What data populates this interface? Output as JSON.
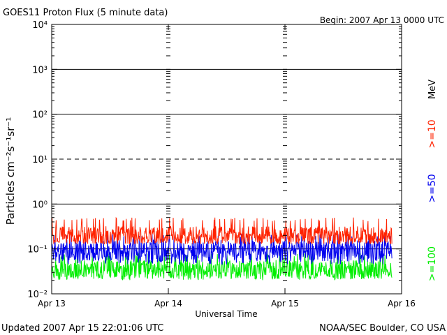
{
  "chart_data": {
    "type": "line",
    "title": "GOES11 Proton Flux (5 minute data)",
    "begin_label": "Begin: 2007 Apr 13 0000 UTC",
    "xlabel": "Universal Time",
    "ylabel": "Particles cm⁻²s⁻¹sr⁻¹",
    "y_scale": "log",
    "ylim": [
      0.01,
      10000
    ],
    "x_start": "2007-04-13 00:00 UTC",
    "x_end": "2007-04-16 00:00 UTC",
    "x_tick_labels": [
      "Apr 13",
      "Apr 14",
      "Apr 15",
      "Apr 16"
    ],
    "y_tick_labels": [
      "10⁻²",
      "10⁻¹",
      "10⁰",
      "10¹",
      "10²",
      "10³",
      "10⁴"
    ],
    "units_label": "MeV",
    "data_end": "2007-04-15 22:00 UTC",
    "threshold_lines": [
      {
        "value": 0.1,
        "style": "solid"
      },
      {
        "value": 1,
        "style": "solid"
      },
      {
        "value": 10,
        "style": "dashed"
      },
      {
        "value": 100,
        "style": "solid"
      },
      {
        "value": 1000,
        "style": "solid"
      }
    ],
    "series": [
      {
        "name": ">=10",
        "color": "#ff2200",
        "baseline": 0.2,
        "range": [
          0.13,
          0.5
        ]
      },
      {
        "name": ">=50",
        "color": "#0000ee",
        "baseline": 0.09,
        "range": [
          0.045,
          0.22
        ]
      },
      {
        "name": ">=100",
        "color": "#00ee00",
        "baseline": 0.035,
        "range": [
          0.02,
          0.08
        ]
      }
    ]
  },
  "footer": {
    "updated": "Updated 2007 Apr 15 22:01:06 UTC",
    "source": "NOAA/SEC Boulder, CO USA"
  }
}
